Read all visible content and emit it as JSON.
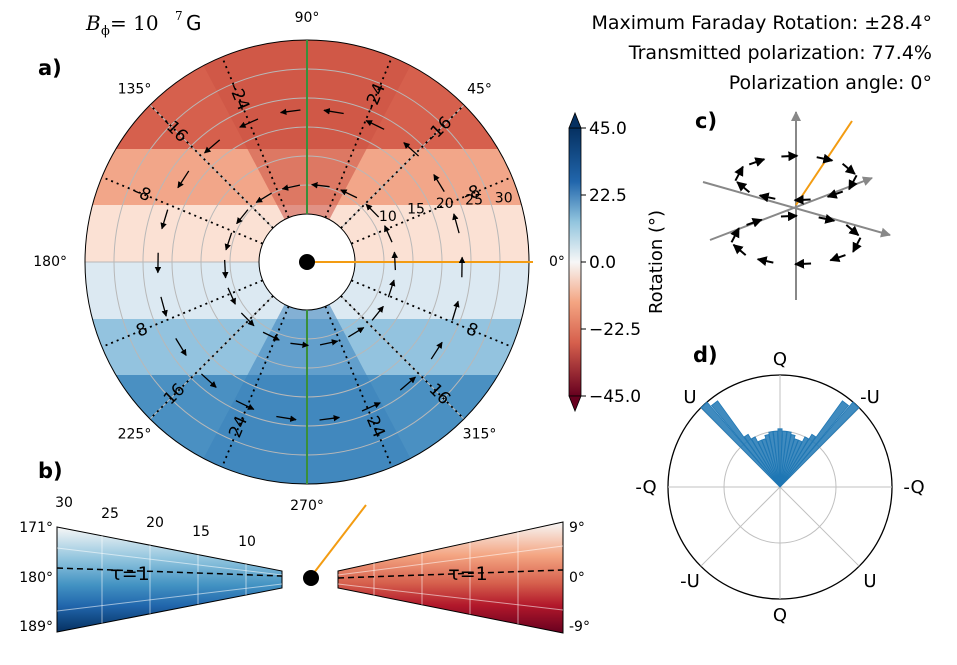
{
  "header": {
    "bfield_symbol": "B",
    "bfield_subscript": "ϕ",
    "bfield_eq": " = 10",
    "bfield_exp": "7",
    "bfield_unit": "G",
    "max_rotation": "Maximum Faraday Rotation: ±28.4°",
    "transmitted": "Transmitted polarization:  77.4%",
    "pol_angle": "Polarization angle: 0°"
  },
  "panels": {
    "a": "a)",
    "b": "b)",
    "c": "c)",
    "d": "d)"
  },
  "colors": {
    "blue": "#1f77b4",
    "orange": "#f39c12",
    "green": "#3a8f3a",
    "red_dark": "#67001f",
    "blue_dark": "#053061"
  },
  "chart_data": [
    {
      "id": "panel-a",
      "type": "polar-heatmap",
      "angle_labels": [
        {
          "angle": 0,
          "text": "0°"
        },
        {
          "angle": 45,
          "text": "45°"
        },
        {
          "angle": 90,
          "text": "90°"
        },
        {
          "angle": 135,
          "text": "135°"
        },
        {
          "angle": 180,
          "text": "180°"
        },
        {
          "angle": 225,
          "text": "225°"
        },
        {
          "angle": 270,
          "text": "270°"
        },
        {
          "angle": 315,
          "text": "315°"
        }
      ],
      "radial_labels": [
        "10",
        "15",
        "20",
        "25",
        "30"
      ],
      "radial_values": [
        10,
        15,
        20,
        25,
        30
      ],
      "r_inner": 5,
      "r_outer": 35,
      "contours": [
        {
          "angle": 22.5,
          "text": "-8"
        },
        {
          "angle": 45,
          "text": "-16"
        },
        {
          "angle": 67.5,
          "text": "-24"
        },
        {
          "angle": 112.5,
          "text": "-24"
        },
        {
          "angle": 135,
          "text": "-16"
        },
        {
          "angle": 157.5,
          "text": "-8"
        },
        {
          "angle": 202.5,
          "text": "8"
        },
        {
          "angle": 225,
          "text": "16"
        },
        {
          "angle": 247.5,
          "text": "24"
        },
        {
          "angle": 292.5,
          "text": "24"
        },
        {
          "angle": 315,
          "text": "16"
        },
        {
          "angle": 337.5,
          "text": "8"
        }
      ],
      "colorbar": {
        "label": "Rotation (°)",
        "ticks": [
          {
            "value": 45,
            "text": "45.0"
          },
          {
            "value": 22.5,
            "text": "22.5"
          },
          {
            "value": 0,
            "text": "0.0"
          },
          {
            "value": -22.5,
            "text": "−22.5"
          },
          {
            "value": -45,
            "text": "−45.0"
          }
        ],
        "range": [
          -45,
          45
        ]
      }
    },
    {
      "id": "panel-b",
      "type": "wedge-heatmap",
      "left": {
        "radial_labels": [
          "30",
          "25",
          "20",
          "15",
          "10"
        ],
        "angle_labels": [
          "171°",
          "180°",
          "189°"
        ],
        "annotation": "τ=1"
      },
      "right": {
        "angle_labels": [
          "9°",
          "0°",
          "-9°"
        ],
        "annotation": "τ=1"
      }
    },
    {
      "id": "panel-d",
      "type": "polar-histogram",
      "axis_labels": {
        "top": "Q",
        "bottom": "Q",
        "left": "-Q",
        "right": "-Q",
        "upper_left": "U",
        "upper_right": "-U",
        "lower_left": "-U",
        "lower_right": "U"
      },
      "bins_deg": [
        -22.5,
        -20,
        -17.5,
        -15,
        -12.5,
        -10,
        -7.5,
        -5,
        -2.5,
        0,
        2.5,
        5,
        7.5,
        10,
        12.5,
        15,
        17.5,
        20,
        22.5
      ],
      "counts": [
        1.0,
        0.95,
        0.55,
        0.5,
        0.45,
        0.45,
        0.48,
        0.5,
        0.5,
        0.52,
        0.5,
        0.5,
        0.48,
        0.45,
        0.45,
        0.5,
        0.55,
        0.95,
        1.0
      ]
    }
  ]
}
